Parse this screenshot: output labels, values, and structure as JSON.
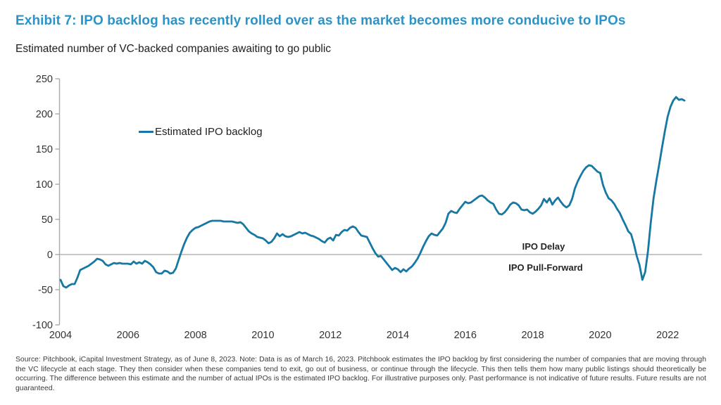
{
  "header": {
    "title": "Exhibit 7: IPO backlog has recently rolled over as the market becomes more conducive to IPOs",
    "subtitle": "Estimated number of VC-backed companies awaiting to go public"
  },
  "legend": {
    "label": "Estimated IPO backlog"
  },
  "annotations": {
    "above_zero_line": "IPO Delay",
    "below_zero_line": "IPO Pull-Forward"
  },
  "footnote": "Source: Pitchbook, iCapital Investment Strategy, as of June 8, 2023. Note: Data is as of March 16, 2023. Pitchbook estimates the IPO backlog by first considering the number of companies that are moving through the VC lifecycle at each stage. They then consider when these companies tend to exit, go out of business, or continue through the lifecycle. This then tells them how many public listings should theoretically be occurring. The difference between this estimate and the number of actual IPOs is the estimated IPO backlog. For illustrative purposes only. Past performance is not indicative of future results. Future results are not guaranteed.",
  "colors": {
    "title_blue": "#2A93C8",
    "line_teal": "#1778A3",
    "axis_gray": "#A9A9A9",
    "zero_line_gray": "#8F8F8F",
    "tick_label_gray": "#333333"
  },
  "chart_data": {
    "type": "line",
    "title": "Estimated IPO backlog",
    "xlabel": "",
    "ylabel": "",
    "xlim": [
      2004,
      2023.0
    ],
    "ylim": [
      -100,
      250
    ],
    "x_ticks": [
      2004,
      2006,
      2008,
      2010,
      2012,
      2014,
      2016,
      2018,
      2020,
      2022
    ],
    "y_ticks": [
      250,
      200,
      150,
      100,
      50,
      0,
      -50,
      -100
    ],
    "grid": "horizontal zero-line only",
    "legend_position": "inside upper-left",
    "series": [
      {
        "name": "Estimated IPO backlog",
        "x_start": 2004.0,
        "x_step_years": 0.083333,
        "values": [
          -36,
          -45,
          -47,
          -44,
          -42,
          -42,
          -33,
          -22,
          -20,
          -18,
          -16,
          -13,
          -10,
          -6,
          -7,
          -9,
          -14,
          -16,
          -14,
          -12,
          -13,
          -12,
          -13,
          -13,
          -13,
          -14,
          -10,
          -13,
          -11,
          -13,
          -9,
          -11,
          -14,
          -18,
          -25,
          -27,
          -27,
          -23,
          -24,
          -27,
          -26,
          -20,
          -8,
          4,
          15,
          24,
          31,
          35,
          38,
          39,
          41,
          43,
          45,
          47,
          48,
          48,
          48,
          48,
          47,
          47,
          47,
          47,
          46,
          45,
          46,
          43,
          38,
          33,
          30,
          28,
          25,
          24,
          23,
          20,
          16,
          18,
          23,
          30,
          26,
          29,
          26,
          25,
          26,
          28,
          30,
          32,
          30,
          31,
          29,
          27,
          26,
          24,
          22,
          19,
          17,
          22,
          24,
          20,
          28,
          27,
          32,
          35,
          34,
          38,
          40,
          38,
          32,
          27,
          26,
          25,
          17,
          9,
          2,
          -3,
          -2,
          -7,
          -12,
          -17,
          -22,
          -19,
          -21,
          -25,
          -21,
          -24,
          -20,
          -17,
          -12,
          -6,
          2,
          11,
          19,
          26,
          30,
          28,
          27,
          32,
          37,
          45,
          58,
          62,
          60,
          59,
          65,
          70,
          75,
          73,
          74,
          77,
          80,
          83,
          84,
          81,
          77,
          74,
          72,
          64,
          58,
          57,
          60,
          65,
          71,
          74,
          73,
          70,
          64,
          63,
          64,
          60,
          58,
          61,
          65,
          70,
          79,
          74,
          80,
          71,
          77,
          81,
          75,
          70,
          67,
          70,
          79,
          94,
          104,
          112,
          119,
          124,
          127,
          126,
          122,
          118,
          116,
          99,
          88,
          80,
          77,
          72,
          65,
          59,
          50,
          42,
          33,
          29,
          15,
          -2,
          -15,
          -36,
          -25,
          5,
          45,
          80,
          105,
          128,
          152,
          175,
          196,
          210,
          219,
          224,
          220,
          221,
          219
        ]
      }
    ]
  }
}
